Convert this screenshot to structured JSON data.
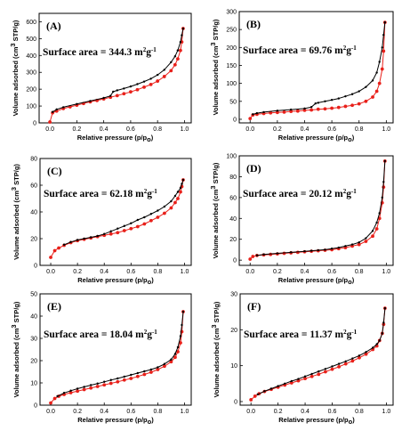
{
  "colors": {
    "adsorption": "#e8201a",
    "desorption": "#000000",
    "axis": "#000000"
  },
  "chart_data": [
    {
      "type": "line",
      "label": "(A)",
      "surface_text": "Surface area = 344.3 m",
      "surface_unit_sup": "2",
      "surface_unit_g": "g",
      "surface_unit_exp": "-1",
      "xlabel": "Relative pressure (p/p",
      "xlabel_sub": "o",
      "xlabel_close": ")",
      "ylabel": "Volume adsorbed (cm",
      "ylabel_sup": "3",
      "ylabel_tail": " STP/g)",
      "xlim": [
        -0.08,
        1.05
      ],
      "ylim": [
        0,
        650
      ],
      "xticks": [
        "0.0",
        "0.2",
        "0.4",
        "0.6",
        "0.8",
        "1.0"
      ],
      "xtick_values": [
        0,
        0.2,
        0.4,
        0.6,
        0.8,
        1.0
      ],
      "yticks": [
        "0",
        "100",
        "200",
        "300",
        "400",
        "500",
        "600"
      ],
      "ytick_values": [
        0,
        100,
        200,
        300,
        400,
        500,
        600
      ],
      "series": [
        {
          "role": "adsorption",
          "x": [
            0.0,
            0.02,
            0.05,
            0.1,
            0.15,
            0.2,
            0.25,
            0.3,
            0.35,
            0.4,
            0.45,
            0.5,
            0.55,
            0.6,
            0.65,
            0.7,
            0.75,
            0.8,
            0.85,
            0.9,
            0.93,
            0.95,
            0.97,
            0.98,
            0.99
          ],
          "y": [
            5,
            60,
            70,
            85,
            95,
            105,
            115,
            125,
            133,
            142,
            152,
            162,
            173,
            184,
            197,
            212,
            228,
            248,
            275,
            310,
            345,
            380,
            430,
            480,
            560
          ]
        },
        {
          "role": "desorption",
          "x": [
            0.99,
            0.98,
            0.97,
            0.95,
            0.93,
            0.9,
            0.85,
            0.8,
            0.75,
            0.7,
            0.65,
            0.6,
            0.55,
            0.5,
            0.47,
            0.45,
            0.4,
            0.3,
            0.2,
            0.1,
            0.05,
            0.02
          ],
          "y": [
            560,
            520,
            480,
            430,
            395,
            360,
            315,
            285,
            262,
            245,
            230,
            216,
            204,
            193,
            185,
            160,
            148,
            130,
            112,
            93,
            80,
            65
          ]
        }
      ]
    },
    {
      "type": "line",
      "label": "(B)",
      "surface_text": "Surface area = 69.76 m",
      "surface_unit_sup": "2",
      "surface_unit_g": "g",
      "surface_unit_exp": "-1",
      "xlabel": "Relative pressure (p/p",
      "xlabel_sub": "o",
      "xlabel_close": ")",
      "ylabel": "Volume adsorbed (cm",
      "ylabel_sup": "3",
      "ylabel_tail": " STP/g)",
      "xlim": [
        -0.08,
        1.05
      ],
      "ylim": [
        -10,
        300
      ],
      "xticks": [
        "0.0",
        "0.2",
        "0.4",
        "0.6",
        "0.8",
        "1.0"
      ],
      "xtick_values": [
        0,
        0.2,
        0.4,
        0.6,
        0.8,
        1.0
      ],
      "yticks": [
        "0",
        "50",
        "100",
        "150",
        "200",
        "250",
        "300"
      ],
      "ytick_values": [
        0,
        50,
        100,
        150,
        200,
        250,
        300
      ],
      "series": [
        {
          "role": "adsorption",
          "x": [
            0.0,
            0.02,
            0.05,
            0.1,
            0.15,
            0.2,
            0.25,
            0.3,
            0.35,
            0.4,
            0.45,
            0.5,
            0.55,
            0.6,
            0.65,
            0.7,
            0.75,
            0.8,
            0.85,
            0.9,
            0.93,
            0.95,
            0.97,
            0.98,
            0.99
          ],
          "y": [
            2,
            12,
            14,
            16,
            18,
            19,
            20,
            22,
            23,
            25,
            26,
            28,
            29,
            31,
            33,
            36,
            39,
            43,
            50,
            62,
            78,
            100,
            140,
            190,
            270
          ]
        },
        {
          "role": "desorption",
          "x": [
            0.99,
            0.98,
            0.97,
            0.95,
            0.93,
            0.9,
            0.85,
            0.8,
            0.75,
            0.7,
            0.65,
            0.6,
            0.55,
            0.5,
            0.48,
            0.45,
            0.4,
            0.3,
            0.2,
            0.1,
            0.05,
            0.02
          ],
          "y": [
            270,
            235,
            200,
            160,
            130,
            108,
            90,
            78,
            70,
            64,
            58,
            54,
            50,
            46,
            44,
            34,
            30,
            27,
            24,
            20,
            17,
            14
          ]
        }
      ]
    },
    {
      "type": "line",
      "label": "(C)",
      "surface_text": "Surface area = 62.18 m",
      "surface_unit_sup": "2",
      "surface_unit_g": "g",
      "surface_unit_exp": "-1",
      "xlabel": "Relative pressure (p/p",
      "xlabel_sub": "o",
      "xlabel_close": ")",
      "ylabel": "Volume adsorbed (cm",
      "ylabel_sup": "3",
      "ylabel_tail": " STP/g)",
      "xlim": [
        -0.08,
        1.05
      ],
      "ylim": [
        0,
        80
      ],
      "xticks": [
        "0.0",
        "0.2",
        "0.4",
        "0.6",
        "0.8",
        "1.0"
      ],
      "xtick_values": [
        0,
        0.2,
        0.4,
        0.6,
        0.8,
        1.0
      ],
      "yticks": [
        "0",
        "20",
        "40",
        "60",
        "80"
      ],
      "ytick_values": [
        0,
        20,
        40,
        60,
        80
      ],
      "series": [
        {
          "role": "adsorption",
          "x": [
            0.0,
            0.03,
            0.06,
            0.1,
            0.15,
            0.2,
            0.25,
            0.3,
            0.35,
            0.4,
            0.45,
            0.5,
            0.55,
            0.6,
            0.65,
            0.7,
            0.75,
            0.8,
            0.85,
            0.9,
            0.93,
            0.95,
            0.97,
            0.98,
            0.99
          ],
          "y": [
            6,
            11,
            13,
            15,
            17,
            18.5,
            19.5,
            20.5,
            21.5,
            22.5,
            23.5,
            24.5,
            26,
            27.5,
            29,
            31,
            33.5,
            36,
            39,
            43,
            47,
            50,
            55,
            59,
            64
          ]
        },
        {
          "role": "desorption",
          "x": [
            0.99,
            0.98,
            0.97,
            0.95,
            0.93,
            0.9,
            0.85,
            0.8,
            0.75,
            0.7,
            0.65,
            0.6,
            0.55,
            0.5,
            0.45,
            0.4,
            0.35,
            0.3,
            0.25,
            0.2,
            0.15,
            0.1
          ],
          "y": [
            64,
            61,
            58,
            55,
            52,
            48,
            44,
            41,
            38.5,
            36,
            34,
            31.5,
            29.5,
            27.5,
            25.5,
            23.5,
            22,
            21,
            20,
            19,
            17.5,
            15.5
          ]
        }
      ]
    },
    {
      "type": "line",
      "label": "(D)",
      "surface_text": "Surface area = 20.12 m",
      "surface_unit_sup": "2",
      "surface_unit_g": "g",
      "surface_unit_exp": "-1",
      "xlabel": "Relative pressure (p/p",
      "xlabel_sub": "o",
      "xlabel_close": ")",
      "ylabel": "Volume adsorbed (cm",
      "ylabel_sup": "3",
      "ylabel_tail": " STP/g)",
      "xlim": [
        -0.08,
        1.05
      ],
      "ylim": [
        -5,
        100
      ],
      "xticks": [
        "0.0",
        "0.2",
        "0.4",
        "0.6",
        "0.8",
        "1.0"
      ],
      "xtick_values": [
        0,
        0.2,
        0.4,
        0.6,
        0.8,
        1.0
      ],
      "yticks": [
        "0",
        "20",
        "40",
        "60",
        "80",
        "100"
      ],
      "ytick_values": [
        0,
        20,
        40,
        60,
        80,
        100
      ],
      "series": [
        {
          "role": "adsorption",
          "x": [
            0.0,
            0.02,
            0.05,
            0.1,
            0.15,
            0.2,
            0.25,
            0.3,
            0.35,
            0.4,
            0.45,
            0.5,
            0.55,
            0.6,
            0.65,
            0.7,
            0.75,
            0.8,
            0.85,
            0.9,
            0.93,
            0.95,
            0.97,
            0.98,
            0.99
          ],
          "y": [
            1,
            3.5,
            4.5,
            5,
            5.5,
            6,
            6.5,
            7,
            7.5,
            8,
            8.5,
            9,
            9.5,
            10,
            11,
            12,
            13.5,
            15,
            18,
            23,
            30,
            40,
            55,
            70,
            95
          ]
        },
        {
          "role": "desorption",
          "x": [
            0.99,
            0.98,
            0.97,
            0.95,
            0.93,
            0.9,
            0.85,
            0.8,
            0.75,
            0.7,
            0.65,
            0.6,
            0.55,
            0.5,
            0.45,
            0.4,
            0.3,
            0.2,
            0.1,
            0.05
          ],
          "y": [
            95,
            75,
            60,
            45,
            36,
            28,
            21,
            17,
            15,
            13.5,
            12,
            11,
            10,
            9.5,
            9,
            8.5,
            7.5,
            6.5,
            5.5,
            4.5
          ]
        }
      ]
    },
    {
      "type": "line",
      "label": "(E)",
      "surface_text": "Surface area = 18.04 m",
      "surface_unit_sup": "2",
      "surface_unit_g": "g",
      "surface_unit_exp": "-1",
      "xlabel": "Relative pressure (p/p",
      "xlabel_sub": "o",
      "xlabel_close": ")",
      "ylabel": "Volume adsorbed (cm",
      "ylabel_sup": "3",
      "ylabel_tail": " STP/g)",
      "xlim": [
        -0.08,
        1.05
      ],
      "ylim": [
        0,
        50
      ],
      "xticks": [
        "0.0",
        "0.2",
        "0.4",
        "0.6",
        "0.8",
        "1.0"
      ],
      "xtick_values": [
        0,
        0.2,
        0.4,
        0.6,
        0.8,
        1.0
      ],
      "yticks": [
        "0",
        "10",
        "20",
        "30",
        "40",
        "50"
      ],
      "ytick_values": [
        0,
        10,
        20,
        30,
        40,
        50
      ],
      "series": [
        {
          "role": "adsorption",
          "x": [
            0.0,
            0.03,
            0.06,
            0.1,
            0.15,
            0.2,
            0.25,
            0.3,
            0.35,
            0.4,
            0.45,
            0.5,
            0.55,
            0.6,
            0.65,
            0.7,
            0.75,
            0.8,
            0.85,
            0.9,
            0.93,
            0.95,
            0.97,
            0.98,
            0.99
          ],
          "y": [
            1,
            3,
            4,
            4.8,
            5.6,
            6.3,
            7,
            7.7,
            8.4,
            9.1,
            9.8,
            10.5,
            11.3,
            12,
            12.9,
            13.8,
            14.8,
            16,
            17.5,
            19.5,
            21.5,
            24,
            28,
            33,
            42
          ]
        },
        {
          "role": "desorption",
          "x": [
            0.99,
            0.98,
            0.97,
            0.95,
            0.93,
            0.9,
            0.85,
            0.8,
            0.75,
            0.7,
            0.65,
            0.6,
            0.55,
            0.5,
            0.45,
            0.4,
            0.35,
            0.3,
            0.25,
            0.2,
            0.15,
            0.1,
            0.05
          ],
          "y": [
            42,
            36,
            31,
            26,
            23,
            20.5,
            18.5,
            17,
            16,
            15.2,
            14.4,
            13.6,
            12.8,
            12,
            11.3,
            10.5,
            9.7,
            9,
            8.2,
            7.4,
            6.5,
            5.5,
            4
          ]
        }
      ]
    },
    {
      "type": "line",
      "label": "(F)",
      "surface_text": "Surface area = 11.37 m",
      "surface_unit_sup": "2",
      "surface_unit_g": "g",
      "surface_unit_exp": "-1",
      "xlabel": "Relative pressure (p/p",
      "xlabel_sub": "o",
      "xlabel_close": ")",
      "ylabel": "Volume adsorbed (cm",
      "ylabel_sup": "3",
      "ylabel_tail": " STP/g)",
      "xlim": [
        -0.08,
        1.05
      ],
      "ylim": [
        -1,
        30
      ],
      "xticks": [
        "0.0",
        "0.2",
        "0.4",
        "0.6",
        "0.8",
        "1.0"
      ],
      "xtick_values": [
        0,
        0.2,
        0.4,
        0.6,
        0.8,
        1.0
      ],
      "yticks": [
        "0",
        "10",
        "20",
        "30"
      ],
      "ytick_values": [
        0,
        10,
        20,
        30
      ],
      "series": [
        {
          "role": "adsorption",
          "x": [
            0.0,
            0.03,
            0.06,
            0.1,
            0.15,
            0.2,
            0.25,
            0.3,
            0.35,
            0.4,
            0.45,
            0.5,
            0.55,
            0.6,
            0.65,
            0.7,
            0.75,
            0.8,
            0.85,
            0.9,
            0.93,
            0.95,
            0.97,
            0.98,
            0.99
          ],
          "y": [
            0.5,
            1.5,
            2.2,
            2.8,
            3.4,
            4,
            4.6,
            5.2,
            5.8,
            6.4,
            7,
            7.6,
            8.3,
            9,
            9.7,
            10.5,
            11.3,
            12.2,
            13.2,
            14.5,
            15.5,
            17,
            19,
            21.5,
            26
          ]
        },
        {
          "role": "desorption",
          "x": [
            0.99,
            0.98,
            0.97,
            0.95,
            0.93,
            0.9,
            0.85,
            0.8,
            0.75,
            0.7,
            0.65,
            0.6,
            0.55,
            0.5,
            0.45,
            0.4,
            0.35,
            0.3,
            0.25,
            0.2,
            0.15,
            0.1,
            0.05
          ],
          "y": [
            26,
            22,
            19,
            17,
            16,
            15,
            13.8,
            12.8,
            12,
            11.2,
            10.5,
            9.8,
            9.1,
            8.4,
            7.7,
            7,
            6.3,
            5.7,
            5,
            4.3,
            3.6,
            2.9,
            2
          ]
        }
      ]
    }
  ]
}
